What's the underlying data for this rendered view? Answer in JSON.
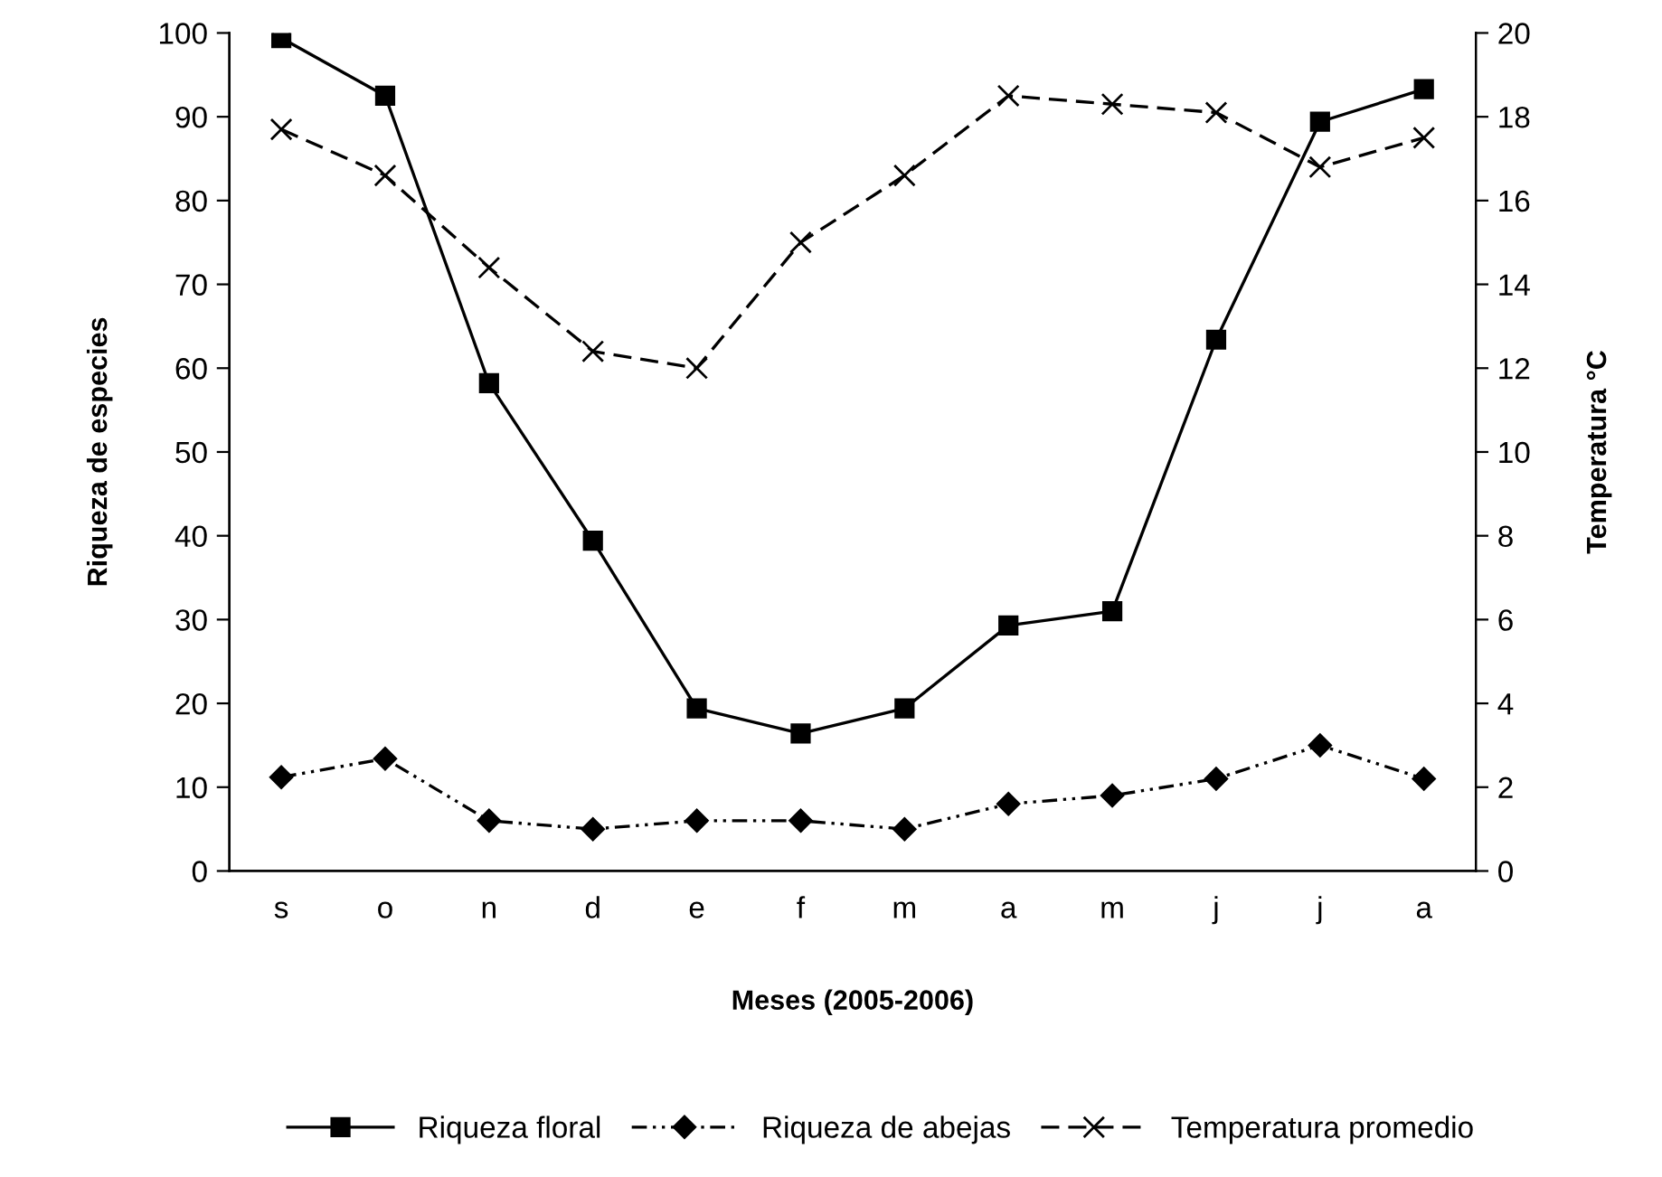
{
  "chart_data": {
    "type": "line",
    "xlabel": "Meses (2005-2006)",
    "ylabel": "Riqueza de especies",
    "y2label": "Temperatura °C",
    "categories": [
      "s",
      "o",
      "n",
      "d",
      "e",
      "f",
      "m",
      "a",
      "m",
      "j",
      "j",
      "a"
    ],
    "series": [
      {
        "name": "Riqueza floral",
        "color": "#000000",
        "marker": "square",
        "line_style": "solid",
        "values": [
          99.4,
          92.5,
          58.2,
          39.4,
          19.4,
          16.4,
          19.4,
          29.3,
          31,
          63.4,
          89.4,
          93.3
        ]
      },
      {
        "name": "Riqueza de abejas",
        "color": "#000000",
        "marker": "diamond",
        "line_style": "dashdot",
        "values": [
          11.2,
          13.4,
          6,
          5,
          6,
          6,
          5,
          8,
          9,
          11,
          15,
          11
        ]
      },
      {
        "name": "Temperatura promedio",
        "color": "#000000",
        "marker": "cross",
        "line_style": "dashed",
        "axis": "y2",
        "values": [
          17.7,
          16.6,
          14.4,
          12.4,
          12.0,
          15.0,
          16.6,
          18.5,
          18.3,
          18.1,
          16.8,
          17.5
        ]
      }
    ],
    "ylim": [
      0,
      100
    ],
    "yticks": [
      0,
      10,
      20,
      30,
      40,
      50,
      60,
      70,
      80,
      90,
      100
    ],
    "y2lim": [
      0,
      20
    ],
    "y2ticks": [
      0,
      2,
      4,
      6,
      8,
      10,
      12,
      14,
      16,
      18,
      20
    ],
    "grid": false,
    "legend": "bottom"
  }
}
